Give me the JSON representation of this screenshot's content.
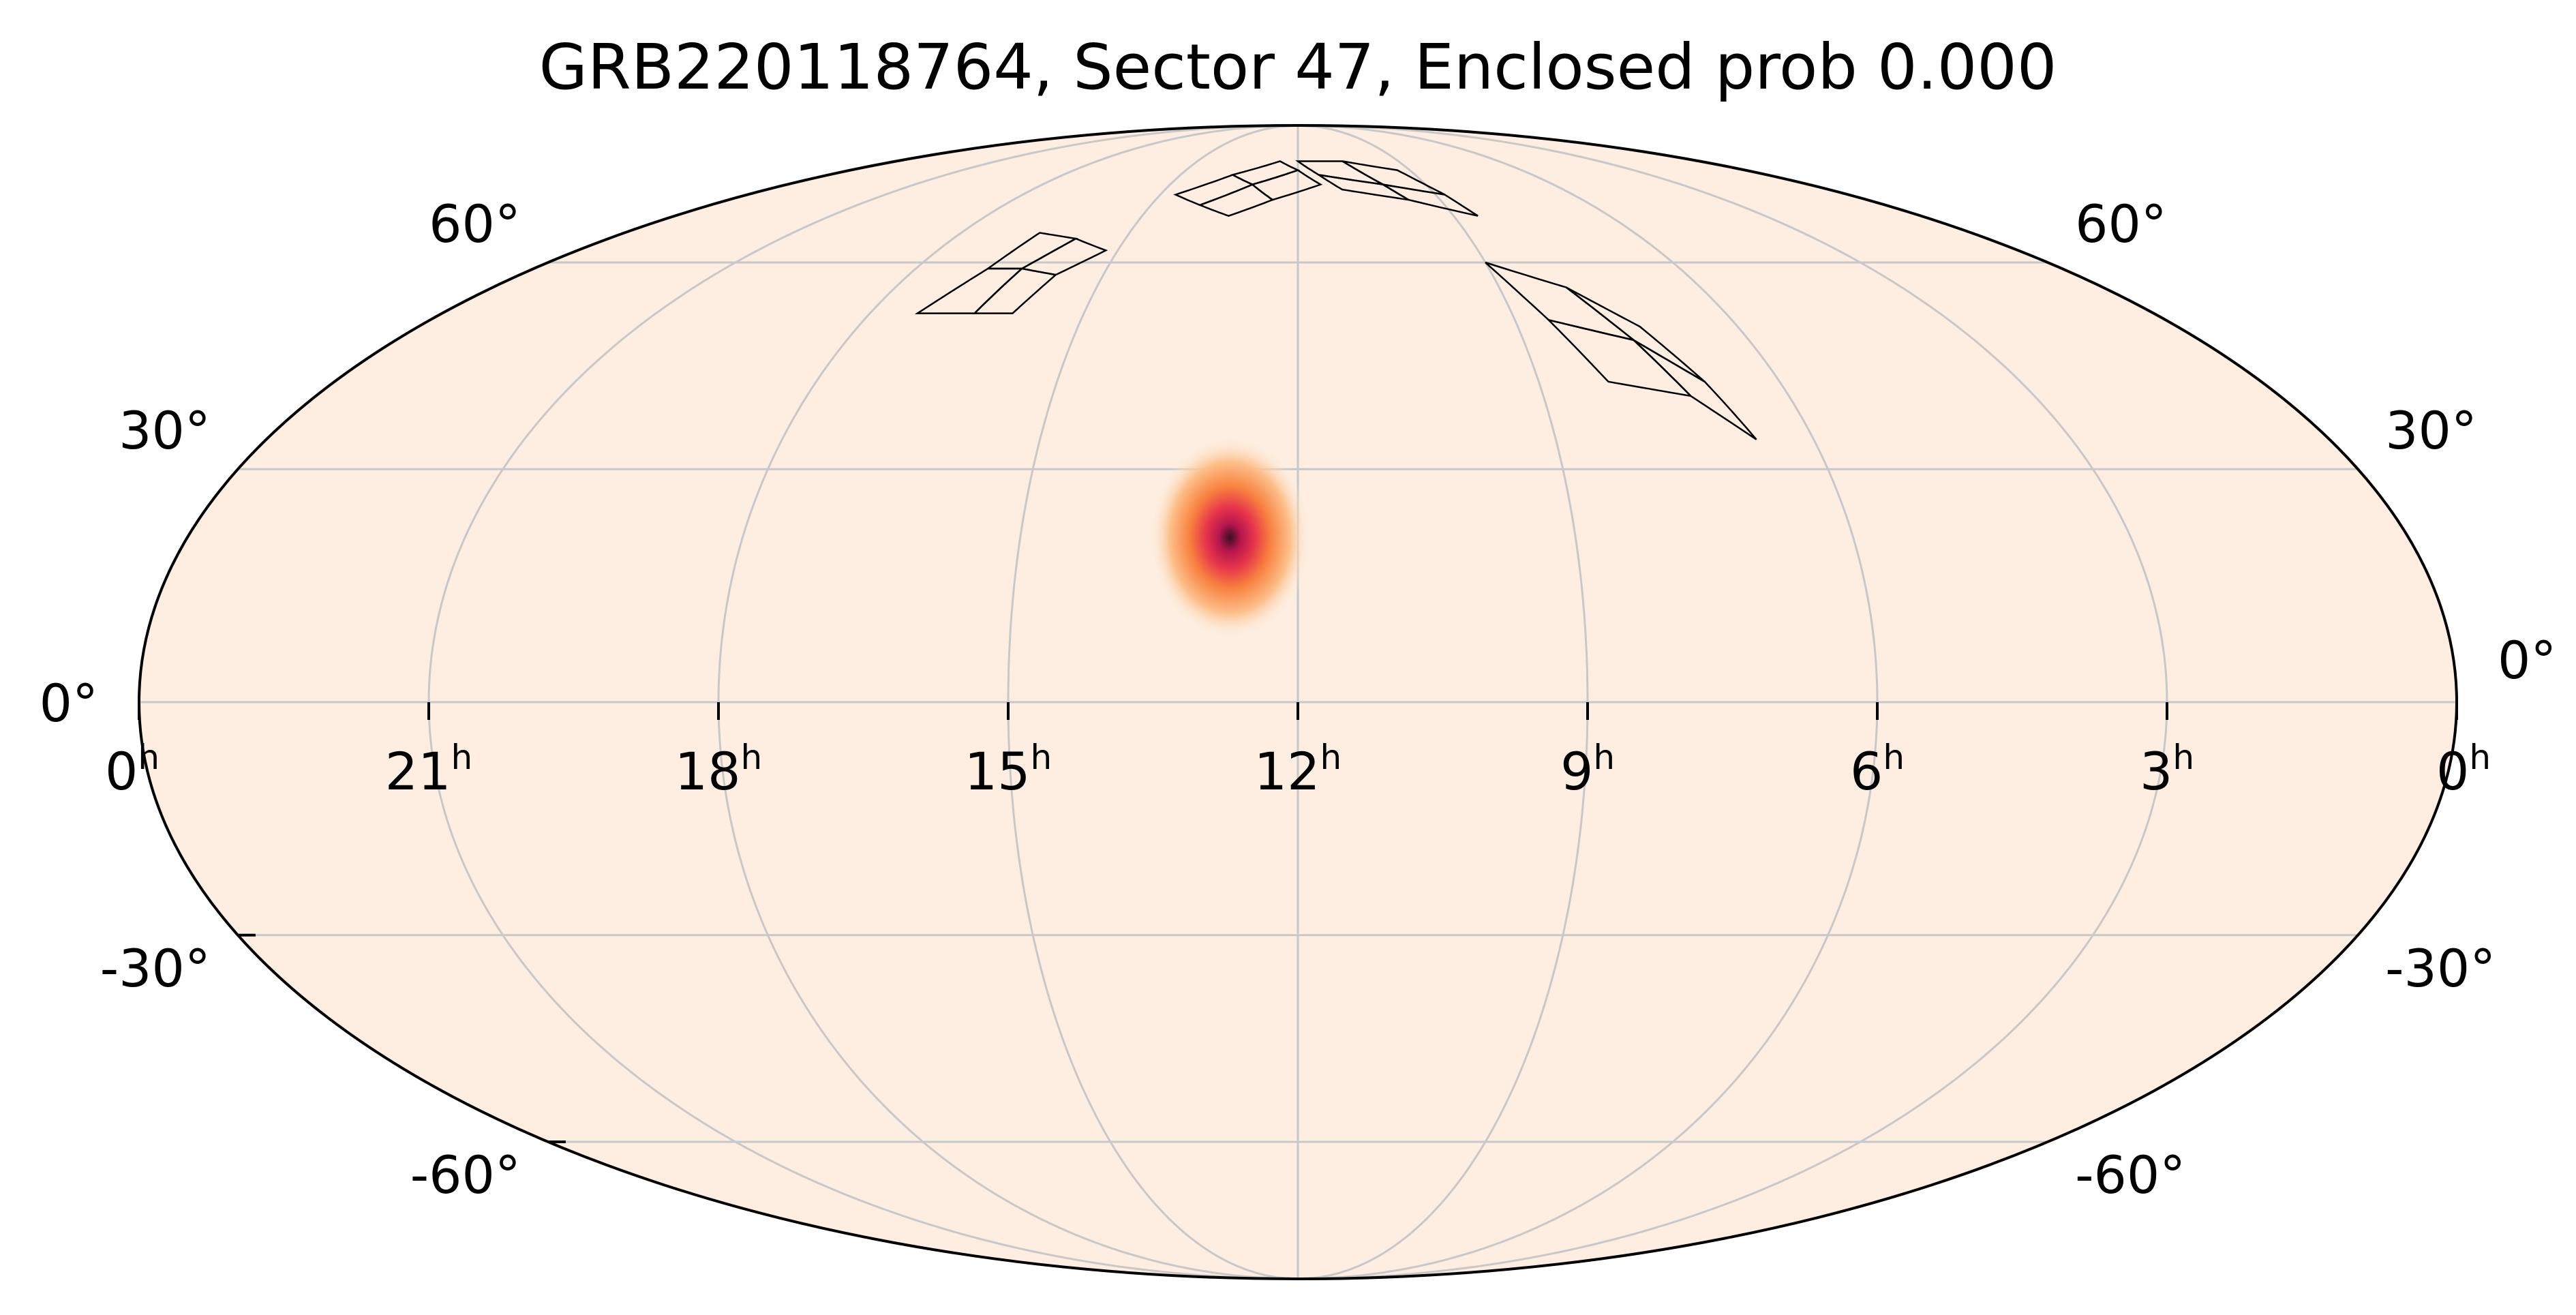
{
  "chart_data": {
    "type": "heatmap",
    "projection": "mollweide",
    "title": "GRB220118764, Sector 47, Enclosed prob 0.000",
    "background_color": "#fdeee1",
    "grid": true,
    "grid_color": "#c8c8c8",
    "ra_ticks": [
      {
        "h": "0",
        "unit": "h",
        "ra_deg": 360
      },
      {
        "h": "21",
        "unit": "h",
        "ra_deg": 315
      },
      {
        "h": "18",
        "unit": "h",
        "ra_deg": 270
      },
      {
        "h": "15",
        "unit": "h",
        "ra_deg": 225
      },
      {
        "h": "12",
        "unit": "h",
        "ra_deg": 180
      },
      {
        "h": "9",
        "unit": "h",
        "ra_deg": 135
      },
      {
        "h": "6",
        "unit": "h",
        "ra_deg": 90
      },
      {
        "h": "3",
        "unit": "h",
        "ra_deg": 45
      },
      {
        "h": "0",
        "unit": "h",
        "ra_deg": 0
      }
    ],
    "dec_ticks_left": [
      {
        "label": "60°",
        "dec": 60
      },
      {
        "label": "30°",
        "dec": 30
      },
      {
        "label": "0°",
        "dec": 0
      },
      {
        "label": "-30°",
        "dec": -30
      },
      {
        "label": "-60°",
        "dec": -60
      }
    ],
    "dec_ticks_right": [
      {
        "label": "60°",
        "dec": 60
      },
      {
        "label": "30°",
        "dec": 30
      },
      {
        "label": "0°",
        "dec": 0
      },
      {
        "label": "-30°",
        "dec": -30
      },
      {
        "label": "-60°",
        "dec": -60
      }
    ],
    "probability_blob": {
      "center_ra_deg": 191,
      "center_dec_deg": 21,
      "colormap": [
        "#fdeee1",
        "#fcc08a",
        "#f8803f",
        "#e6344a",
        "#b8164f",
        "#3a0f20"
      ]
    },
    "sector_footprint": {
      "label": "Sector 47",
      "stroke": "#000000",
      "cameras": [
        {
          "ccds": [
            [
              [
                260,
                52
              ],
              [
                253,
                59
              ],
              [
                245,
                59
              ],
              [
                248,
                52
              ]
            ],
            [
              [
                253,
                59
              ],
              [
                249,
                65
              ],
              [
                238,
                64
              ],
              [
                245,
                59
              ]
            ],
            [
              [
                248,
                52
              ],
              [
                245,
                59
              ],
              [
                236,
                58
              ],
              [
                240,
                52
              ]
            ],
            [
              [
                245,
                59
              ],
              [
                238,
                64
              ],
              [
                228,
                62
              ],
              [
                236,
                58
              ]
            ]
          ]
        },
        {
          "ccds": [
            [
              [
                220,
                72
              ],
              [
                205,
                76
              ],
              [
                196,
                74
              ],
              [
                210,
                70
              ]
            ],
            [
              [
                205,
                76
              ],
              [
                188,
                79
              ],
              [
                180,
                77
              ],
              [
                196,
                74
              ]
            ],
            [
              [
                210,
                70
              ],
              [
                196,
                74
              ],
              [
                188,
                71
              ],
              [
                200,
                68
              ]
            ],
            [
              [
                196,
                74
              ],
              [
                180,
                77
              ],
              [
                172,
                74
              ],
              [
                188,
                71
              ]
            ]
          ]
        },
        {
          "ccds": [
            [
              [
                180,
                79
              ],
              [
                160,
                79
              ],
              [
                150,
                74
              ],
              [
                172,
                76
              ]
            ],
            [
              [
                160,
                79
              ],
              [
                140,
                77
              ],
              [
                132,
                72
              ],
              [
                150,
                74
              ]
            ],
            [
              [
                172,
                76
              ],
              [
                150,
                74
              ],
              [
                145,
                71
              ],
              [
                165,
                73
              ]
            ],
            [
              [
                150,
                74
              ],
              [
                132,
                72
              ],
              [
                128,
                68
              ],
              [
                145,
                71
              ]
            ]
          ]
        },
        {
          "ccds": [
            [
              [
                135,
                60
              ],
              [
                120,
                56
              ],
              [
                113,
                48
              ],
              [
                128,
                51
              ]
            ],
            [
              [
                120,
                56
              ],
              [
                110,
                50
              ],
              [
                104,
                42
              ],
              [
                113,
                48
              ]
            ],
            [
              [
                128,
                51
              ],
              [
                113,
                48
              ],
              [
                108,
                40
              ],
              [
                122,
                42
              ]
            ],
            [
              [
                113,
                48
              ],
              [
                104,
                42
              ],
              [
                100,
                34
              ],
              [
                108,
                40
              ]
            ]
          ]
        }
      ]
    }
  }
}
